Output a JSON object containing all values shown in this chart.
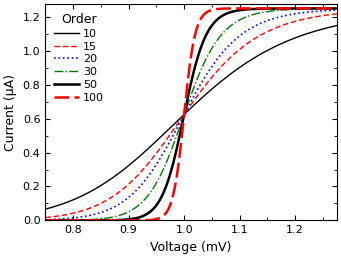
{
  "title": "",
  "xlabel": "Voltage (mV)",
  "ylabel": "Current (μA)",
  "xlim": [
    0.75,
    1.275
  ],
  "ylim": [
    0.0,
    1.275
  ],
  "xticks": [
    0.8,
    0.9,
    1.0,
    1.1,
    1.2
  ],
  "yticks": [
    0.0,
    0.2,
    0.4,
    0.6,
    0.8,
    1.0,
    1.2
  ],
  "V0": 1.0,
  "Imax": 1.25,
  "scale_factor": 3.5,
  "orders": [
    10,
    15,
    20,
    30,
    50,
    100
  ],
  "line_styles": [
    {
      "color": "#000000",
      "linestyle": "-",
      "linewidth": 1.0,
      "label": "10"
    },
    {
      "color": "#ff0000",
      "linestyle": "--",
      "linewidth": 1.0,
      "label": "15",
      "dashes": [
        4,
        2
      ]
    },
    {
      "color": "#0000ff",
      "linestyle": ":",
      "linewidth": 1.2,
      "label": "20"
    },
    {
      "color": "#007700",
      "linestyle": "-.",
      "linewidth": 1.0,
      "label": "30"
    },
    {
      "color": "#000000",
      "linestyle": "-",
      "linewidth": 1.8,
      "label": "50"
    },
    {
      "color": "#ff0000",
      "linestyle": "--",
      "linewidth": 1.8,
      "label": "100",
      "dashes": [
        6,
        2
      ]
    }
  ],
  "legend_title": "Order",
  "legend_loc": "upper left",
  "background_color": "#ffffff"
}
